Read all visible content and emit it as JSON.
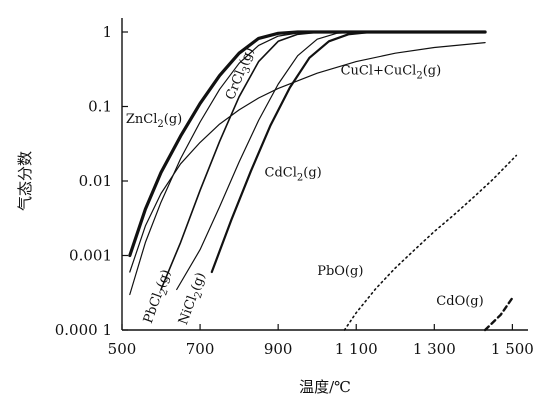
{
  "chart_data": {
    "type": "line",
    "title": "",
    "xlabel": "温度/℃",
    "ylabel": "气态分数",
    "xlim": [
      500,
      1540
    ],
    "ylim_log10": [
      -4,
      0
    ],
    "yscale": "log",
    "grid": false,
    "legend": "none",
    "x_ticks": [
      500,
      700,
      900,
      1100,
      1300,
      1500
    ],
    "x_tick_labels": [
      "500",
      "700",
      "900",
      "1 100",
      "1 300",
      "1 500"
    ],
    "y_ticks": [
      0.0001,
      0.001,
      0.01,
      0.1,
      1
    ],
    "y_tick_labels": [
      "0.000 1",
      "0.001",
      "0.01",
      "0.1",
      "1"
    ],
    "annotations": [
      {
        "text": "ZnCl",
        "sub": "2",
        "tail": "(g)",
        "x": 510,
        "y": 0.06,
        "angle": 0
      },
      {
        "text": "CrCl",
        "sub": "3",
        "tail": "(g)",
        "x": 785,
        "y": 0.12,
        "angle": -68
      },
      {
        "text": "CuCl+CuCl",
        "sub": "2",
        "tail": "(g)",
        "x": 1060,
        "y": 0.27,
        "angle": 0
      },
      {
        "text": "CdCl",
        "sub": "2",
        "tail": "(g)",
        "x": 865,
        "y": 0.0115,
        "angle": 0
      },
      {
        "text": "PbCl",
        "sub": "2",
        "tail": "(g)",
        "x": 575,
        "y": 0.00012,
        "angle": -70
      },
      {
        "text": "NiCl",
        "sub": "2",
        "tail": "(g)",
        "x": 665,
        "y": 0.000115,
        "angle": -70
      },
      {
        "text": "PbO(g)",
        "sub": "",
        "tail": "",
        "x": 1000,
        "y": 0.00055,
        "angle": 0
      },
      {
        "text": "CdO(g)",
        "sub": "",
        "tail": "",
        "x": 1305,
        "y": 0.000215,
        "angle": 0
      }
    ],
    "series": [
      {
        "name": "ZnCl2(g)",
        "style": "solid",
        "width": 3.2,
        "x": [
          520,
          560,
          600,
          650,
          700,
          750,
          800,
          850,
          900,
          950,
          1000,
          1050,
          1100,
          1200,
          1300,
          1430
        ],
        "y": [
          0.001,
          0.0042,
          0.013,
          0.04,
          0.11,
          0.26,
          0.52,
          0.82,
          0.96,
          1,
          1,
          1,
          1,
          1,
          1,
          1
        ]
      },
      {
        "name": "PbCl2(g)",
        "style": "solid",
        "width": 1.2,
        "x": [
          520,
          560,
          600,
          650,
          700,
          750,
          800,
          850,
          900,
          950,
          1000,
          1050,
          1100,
          1200,
          1300,
          1430
        ],
        "y": [
          0.0003,
          0.0015,
          0.0052,
          0.02,
          0.062,
          0.17,
          0.38,
          0.66,
          0.88,
          0.97,
          1,
          1,
          1,
          1,
          1,
          1
        ]
      },
      {
        "name": "CrCl3(g)",
        "style": "solid",
        "width": 1.6,
        "x": [
          600,
          650,
          700,
          750,
          800,
          850,
          900,
          950,
          1000,
          1050,
          1100,
          1200,
          1300,
          1430
        ],
        "y": [
          0.00035,
          0.0015,
          0.0075,
          0.034,
          0.135,
          0.4,
          0.75,
          0.93,
          0.99,
          1,
          1,
          1,
          1,
          1
        ]
      },
      {
        "name": "NiCl2(g)",
        "style": "solid",
        "width": 2.2,
        "x": [
          730,
          780,
          830,
          880,
          930,
          980,
          1030,
          1080,
          1130,
          1200,
          1300,
          1430
        ],
        "y": [
          0.0006,
          0.003,
          0.0135,
          0.055,
          0.18,
          0.45,
          0.75,
          0.93,
          0.99,
          1,
          1,
          1
        ]
      },
      {
        "name": "CdCl2(g)",
        "style": "solid",
        "width": 1.2,
        "x": [
          640,
          700,
          750,
          800,
          850,
          900,
          950,
          1000,
          1050,
          1100,
          1200,
          1300,
          1430
        ],
        "y": [
          0.00035,
          0.0012,
          0.0045,
          0.018,
          0.065,
          0.2,
          0.48,
          0.8,
          0.96,
          1,
          1,
          1,
          1
        ]
      },
      {
        "name": "CuCl+CuCl2(g)",
        "style": "solid",
        "width": 1.2,
        "x": [
          520,
          560,
          600,
          650,
          700,
          750,
          800,
          850,
          900,
          1000,
          1100,
          1200,
          1300,
          1430
        ],
        "y": [
          0.0006,
          0.0025,
          0.0068,
          0.017,
          0.033,
          0.058,
          0.09,
          0.13,
          0.175,
          0.28,
          0.4,
          0.52,
          0.62,
          0.72
        ]
      },
      {
        "name": "PbO(g)",
        "style": "dotted",
        "width": 1.6,
        "x": [
          1070,
          1100,
          1150,
          1200,
          1250,
          1300,
          1350,
          1400,
          1450,
          1510
        ],
        "y": [
          0.0001,
          0.00017,
          0.00036,
          0.00068,
          0.0012,
          0.0021,
          0.0035,
          0.006,
          0.0105,
          0.022
        ]
      },
      {
        "name": "CdO(g)",
        "style": "dashed",
        "width": 2.4,
        "x": [
          1430,
          1470,
          1500
        ],
        "y": [
          0.0001,
          0.00016,
          0.00027
        ]
      }
    ]
  }
}
